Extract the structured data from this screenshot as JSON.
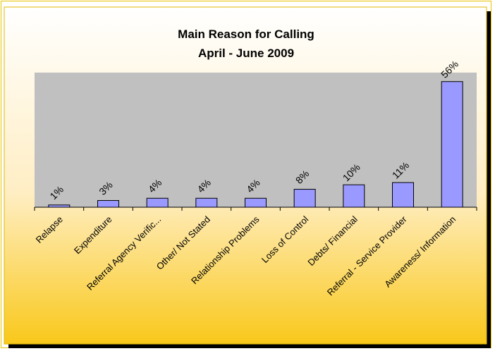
{
  "chart_data": {
    "type": "bar",
    "title": "Main Reason for Calling",
    "subtitle": "April - June 2009",
    "categories": [
      "Relapse",
      "Expenditure",
      "Referral Agency Verific...",
      "Other/ Not Stated",
      "Relationship Problems",
      "Loss of Control",
      "Debts/ Financial",
      "Referral - Service Provider",
      "Awareness/ Information"
    ],
    "values": [
      1,
      3,
      4,
      4,
      4,
      8,
      10,
      11,
      56
    ],
    "data_labels": [
      "1%",
      "3%",
      "4%",
      "4%",
      "4%",
      "8%",
      "10%",
      "11%",
      "56%"
    ],
    "ylim": [
      0,
      60
    ],
    "grid": false,
    "legend": "none",
    "colors": {
      "bar_fill": "#9999ff",
      "bar_stroke": "#000000",
      "plot_background": "#c0c0c0",
      "background_top": "#ffffff",
      "background_bottom": "#f9c81a",
      "frame_border": "#e8c300"
    }
  }
}
